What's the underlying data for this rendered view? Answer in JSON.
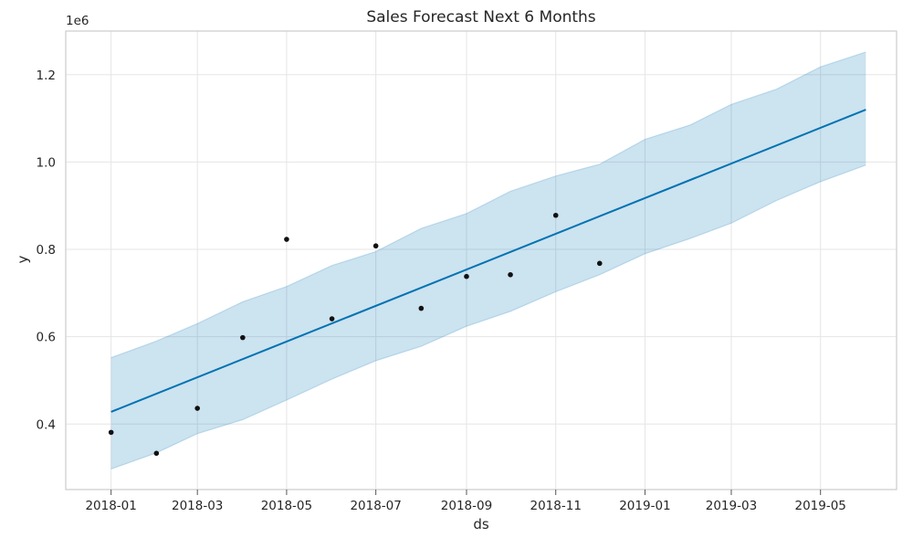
{
  "chart_data": {
    "type": "line",
    "title": "Sales Forecast Next 6 Months",
    "xlabel": "ds",
    "ylabel": "y",
    "y_offset_label": "1e6",
    "x_range": [
      "2017-12-01",
      "2019-06-22"
    ],
    "ylim": [
      0.25,
      1.3
    ],
    "grid": true,
    "x_ticks": [
      "2018-01",
      "2018-03",
      "2018-05",
      "2018-07",
      "2018-09",
      "2018-11",
      "2019-01",
      "2019-03",
      "2019-05"
    ],
    "y_ticks": [
      "0.4",
      "0.6",
      "0.8",
      "1.0",
      "1.2"
    ],
    "series": [
      {
        "kind": "observed",
        "style": "scatter",
        "color": "#111111",
        "x": [
          "2018-01-01",
          "2018-02-01",
          "2018-03-01",
          "2018-04-01",
          "2018-05-01",
          "2018-06-01",
          "2018-07-01",
          "2018-08-01",
          "2018-09-01",
          "2018-10-01",
          "2018-11-01",
          "2018-12-01"
        ],
        "y": [
          0.381,
          0.333,
          0.436,
          0.598,
          0.823,
          0.641,
          0.808,
          0.665,
          0.738,
          0.742,
          0.878,
          0.768
        ]
      },
      {
        "kind": "forecast",
        "style": "line",
        "color": "#0072b2",
        "x": [
          "2018-01-01",
          "2019-06-01"
        ],
        "y": [
          0.428,
          1.12
        ]
      },
      {
        "kind": "uncertainty",
        "style": "band",
        "color": "#0072b2",
        "x": [
          "2018-01-01",
          "2018-02-01",
          "2018-03-01",
          "2018-04-01",
          "2018-05-01",
          "2018-06-01",
          "2018-07-01",
          "2018-08-01",
          "2018-09-01",
          "2018-10-01",
          "2018-11-01",
          "2018-12-01",
          "2019-01-01",
          "2019-02-01",
          "2019-03-01",
          "2019-04-01",
          "2019-05-01",
          "2019-06-01"
        ],
        "upper": [
          0.552,
          0.59,
          0.63,
          0.68,
          0.715,
          0.763,
          0.795,
          0.848,
          0.882,
          0.933,
          0.968,
          0.995,
          1.052,
          1.085,
          1.132,
          1.167,
          1.218,
          1.252
        ],
        "lower": [
          0.297,
          0.334,
          0.378,
          0.41,
          0.455,
          0.503,
          0.545,
          0.578,
          0.624,
          0.658,
          0.703,
          0.742,
          0.79,
          0.825,
          0.86,
          0.912,
          0.955,
          0.993
        ]
      }
    ]
  }
}
